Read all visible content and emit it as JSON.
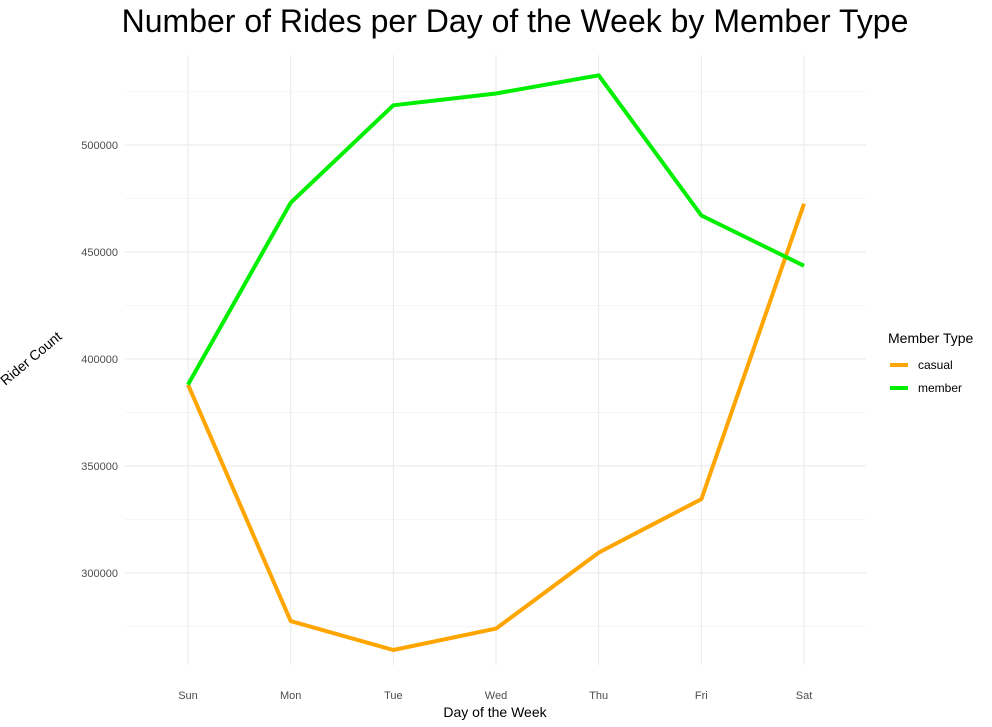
{
  "chart_data": {
    "type": "line",
    "title": "Number of Rides per Day of the Week by Member Type",
    "xlabel": "Day of the Week",
    "ylabel": "Rider Count",
    "categories": [
      "Sun",
      "Mon",
      "Tue",
      "Wed",
      "Thu",
      "Fri",
      "Sat"
    ],
    "series": [
      {
        "name": "casual",
        "color": "#FFA500",
        "values": [
          388000,
          277500,
          264000,
          274000,
          309500,
          334500,
          472500
        ]
      },
      {
        "name": "member",
        "color": "#00EE00",
        "values": [
          388000,
          473000,
          518500,
          524000,
          532500,
          467000,
          443500
        ]
      }
    ],
    "yticks": [
      300000,
      350000,
      400000,
      450000,
      500000
    ],
    "ytick_labels": [
      "300000",
      "350000",
      "400000",
      "450000",
      "500000"
    ],
    "ylim": [
      257000,
      542000
    ],
    "grid": true,
    "legend": {
      "title": "Member Type",
      "position": "right"
    }
  }
}
